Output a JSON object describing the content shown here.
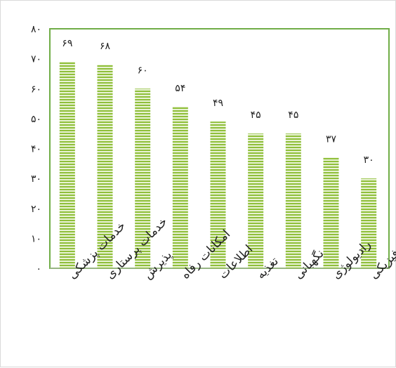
{
  "chart_data": {
    "type": "bar",
    "categories": [
      "خدمات پزشکی",
      "خدمات پرستاری",
      "پذیرش",
      "امکانات رفاه",
      "اطلاعات",
      "تغذیه",
      "نگهبانی",
      "رادیولوژی",
      "فضای فیزیکی"
    ],
    "values": [
      69,
      68,
      60,
      54,
      49,
      45,
      45,
      37,
      30
    ],
    "data_labels": [
      "۶۹",
      "۶۸",
      "۶۰",
      "۵۴",
      "۴۹",
      "۴۵",
      "۴۵",
      "۳۷",
      "۳۰"
    ],
    "y_ticks": [
      0,
      10,
      20,
      30,
      40,
      50,
      60,
      70,
      80
    ],
    "y_tick_labels": [
      "۰",
      "۱۰",
      "۲۰",
      "۳۰",
      "۴۰",
      "۵۰",
      "۶۰",
      "۷۰",
      "۸۰"
    ],
    "ylim": [
      0,
      80
    ],
    "grid": false,
    "legend": "none",
    "colors": {
      "bar_fill": "#8fbf3a",
      "bar_stripe": "#e8f2d4",
      "plot_border": "#70ad47",
      "axis": "#bfbfbf"
    }
  }
}
